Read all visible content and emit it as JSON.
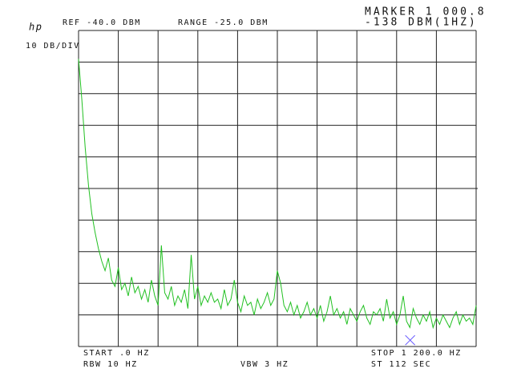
{
  "chart_data": {
    "type": "line",
    "logo": "hp",
    "ref_label": "REF -40.0 DBM",
    "range_label": "RANGE -25.0 DBM",
    "scale_label": "10 DB/DIV",
    "marker_label": "MARKER 1 000.8",
    "marker_value_label": "-138 DBM(1HZ)",
    "start_label": "START .0 HZ",
    "rbw_label": "RBW 10 HZ",
    "vbw_label": "VBW 3 HZ",
    "stop_label": "STOP 1 200.0 HZ",
    "sweep_label": "ST 112 SEC",
    "xlim": [
      0,
      1200
    ],
    "ylim": [
      -140,
      -40
    ],
    "xticks": [
      0,
      120,
      240,
      360,
      480,
      600,
      720,
      840,
      960,
      1080,
      1200
    ],
    "yticks": [
      -140,
      -130,
      -120,
      -110,
      -100,
      -90,
      -80,
      -70,
      -60,
      -50,
      -40
    ],
    "grid": true,
    "marker": {
      "x": 1000.8,
      "y": -138,
      "color": "#6a5cff"
    },
    "x": [
      0,
      10,
      20,
      30,
      40,
      50,
      60,
      70,
      80,
      90,
      100,
      110,
      120,
      130,
      140,
      150,
      160,
      170,
      180,
      190,
      200,
      210,
      220,
      230,
      240,
      250,
      260,
      270,
      280,
      290,
      300,
      310,
      320,
      330,
      340,
      350,
      360,
      370,
      380,
      390,
      400,
      410,
      420,
      430,
      440,
      450,
      460,
      470,
      480,
      490,
      500,
      510,
      520,
      530,
      540,
      550,
      560,
      570,
      580,
      590,
      600,
      610,
      620,
      630,
      640,
      650,
      660,
      670,
      680,
      690,
      700,
      710,
      720,
      730,
      740,
      750,
      760,
      770,
      780,
      790,
      800,
      810,
      820,
      830,
      840,
      850,
      860,
      870,
      880,
      890,
      900,
      910,
      920,
      930,
      940,
      950,
      960,
      970,
      980,
      990,
      1000,
      1010,
      1020,
      1030,
      1040,
      1050,
      1060,
      1070,
      1080,
      1090,
      1100,
      1110,
      1120,
      1130,
      1140,
      1150,
      1160,
      1170,
      1180,
      1190,
      1200
    ],
    "series": [
      {
        "color": "#22c022",
        "values": [
          -49,
          -62,
          -77,
          -89,
          -98,
          -104,
          -109,
          -113,
          -116,
          -112,
          -119,
          -121,
          -115,
          -122,
          -120,
          -124,
          -118,
          -123,
          -121,
          -125,
          -122,
          -126,
          -119,
          -124,
          -127,
          -108,
          -123,
          -125,
          -121,
          -127,
          -124,
          -126,
          -122,
          -128,
          -111,
          -125,
          -121,
          -127,
          -124,
          -126,
          -123,
          -126,
          -125,
          -128,
          -122,
          -127,
          -125,
          -119,
          -126,
          -129,
          -124,
          -127,
          -126,
          -130,
          -125,
          -128,
          -126,
          -123,
          -127,
          -125,
          -116,
          -120,
          -127,
          -129,
          -126,
          -130,
          -127,
          -131,
          -129,
          -126,
          -130,
          -128,
          -131,
          -127,
          -132,
          -129,
          -124,
          -130,
          -128,
          -131,
          -129,
          -133,
          -128,
          -130,
          -132,
          -129,
          -127,
          -131,
          -133,
          -129,
          -130,
          -128,
          -132,
          -125,
          -131,
          -129,
          -133,
          -130,
          -124,
          -132,
          -134,
          -128,
          -131,
          -133,
          -130,
          -132,
          -129,
          -134,
          -131,
          -133,
          -130,
          -132,
          -134,
          -131,
          -129,
          -133,
          -130,
          -132,
          -131,
          -133,
          -127
        ]
      }
    ]
  }
}
